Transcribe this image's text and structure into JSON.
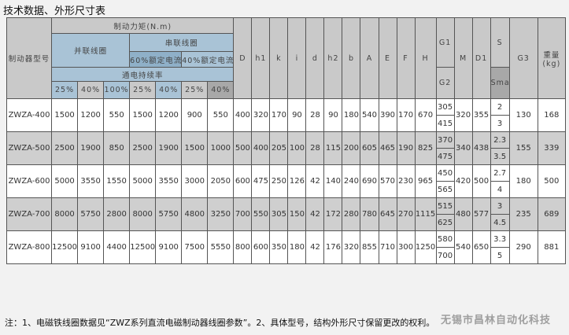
{
  "title": "技术数据、外形尺寸表",
  "header": {
    "model": "制动器型号",
    "torque": "制动力矩(N.m)",
    "parallel": "并联线圈",
    "series": "串联线圈",
    "series_60": "60%额定电流",
    "series_40": "40%额定电流",
    "duty": "通电持续率",
    "duty_values": [
      "25%",
      "40%",
      "100%",
      "25%",
      "40%",
      "25%",
      "40%"
    ],
    "dims": [
      "D",
      "h1",
      "k",
      "i",
      "d",
      "h2",
      "b",
      "A",
      "E",
      "F",
      "H"
    ],
    "g1": "G1",
    "g2": "G2",
    "m": "M",
    "d1": "D1",
    "s": "S",
    "smax": "Smax",
    "g3": "G3",
    "weight": "重量(kg)"
  },
  "rows": [
    {
      "model": "ZWZA-400",
      "torque": [
        "1500",
        "1200",
        "550",
        "1500",
        "1200",
        "900",
        "550"
      ],
      "dims": [
        "400",
        "320",
        "170",
        "90",
        "28",
        "90",
        "180",
        "540",
        "390",
        "170",
        "670"
      ],
      "g1": "305",
      "g2": "415",
      "m": "320",
      "d1": "355",
      "s": "2",
      "smax": "3",
      "g3": "130",
      "weight": "168"
    },
    {
      "model": "ZWZA-500",
      "torque": [
        "2500",
        "1900",
        "850",
        "2500",
        "1900",
        "1500",
        "1000"
      ],
      "dims": [
        "500",
        "400",
        "205",
        "100",
        "28",
        "115",
        "200",
        "605",
        "465",
        "190",
        "825"
      ],
      "g1": "370",
      "g2": "475",
      "m": "340",
      "d1": "438",
      "s": "2.3",
      "smax": "3.5",
      "g3": "155",
      "weight": "339"
    },
    {
      "model": "ZWZA-600",
      "torque": [
        "5000",
        "3550",
        "1550",
        "5000",
        "3550",
        "3000",
        "2050"
      ],
      "dims": [
        "600",
        "475",
        "250",
        "126",
        "42",
        "140",
        "240",
        "690",
        "570",
        "230",
        "965"
      ],
      "g1": "450",
      "g2": "565",
      "m": "420",
      "d1": "500",
      "s": "2.7",
      "smax": "4",
      "g3": "180",
      "weight": "500"
    },
    {
      "model": "ZWZA-700",
      "torque": [
        "8000",
        "5750",
        "2800",
        "8000",
        "5750",
        "4800",
        "3250"
      ],
      "dims": [
        "700",
        "550",
        "305",
        "150",
        "42",
        "172",
        "280",
        "780",
        "645",
        "270",
        "1115"
      ],
      "g1": "515",
      "g2": "625",
      "m": "480",
      "d1": "577",
      "s": "3",
      "smax": "4.5",
      "g3": "235",
      "weight": "689"
    },
    {
      "model": "ZWZA-800",
      "torque": [
        "12500",
        "9100",
        "4400",
        "12500",
        "9100",
        "7500",
        "5550"
      ],
      "dims": [
        "800",
        "600",
        "350",
        "180",
        "42",
        "176",
        "320",
        "855",
        "710",
        "300",
        "1250"
      ],
      "g1": "580",
      "g2": "700",
      "m": "540",
      "d1": "650",
      "s": "3.3",
      "smax": "5",
      "g3": "290",
      "weight": "881"
    }
  ],
  "note": "注：1、电磁铁线圈数据见“ZWZ系列直流电磁制动器线圈参数”。2、具体型号，结构外形尺寸保留更改的权利。",
  "watermark": "无锡市昌林自动化科技"
}
